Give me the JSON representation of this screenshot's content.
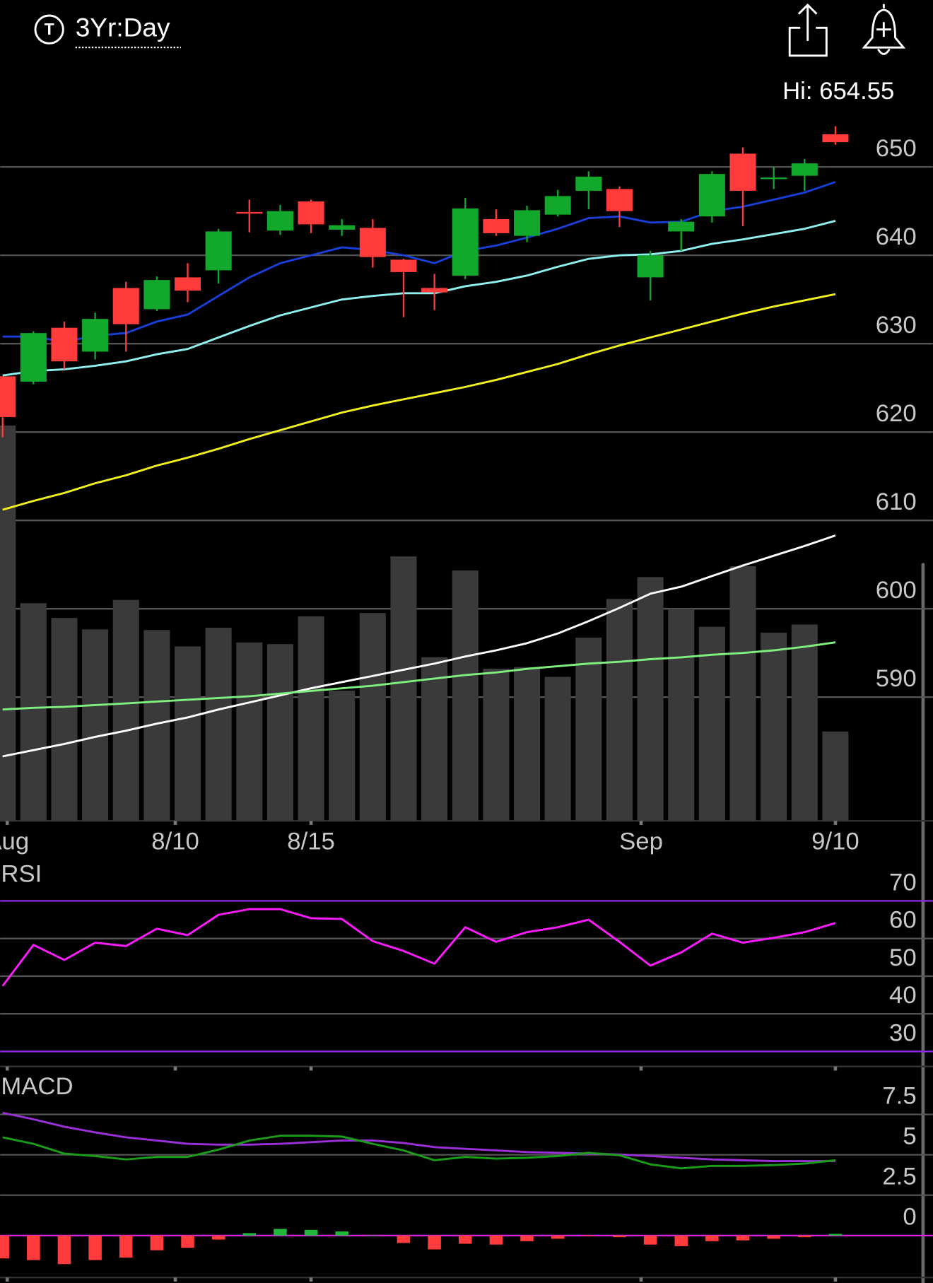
{
  "header": {
    "symbol_icon": "T",
    "timeframe": "3Yr:Day",
    "high_label": "Hi: 654.55"
  },
  "chart_data": [
    {
      "type": "candlestick",
      "categories": [
        null,
        null,
        null,
        null,
        null,
        null,
        null,
        null,
        null,
        null,
        null,
        null,
        null,
        null,
        null,
        null,
        null,
        null,
        null,
        null,
        null,
        null,
        null,
        null,
        null,
        null,
        null,
        null
      ],
      "open": [
        626.3,
        625.7,
        631.8,
        629.1,
        636.3,
        633.9,
        637.5,
        638.3,
        644.9,
        642.8,
        646.1,
        642.9,
        643.1,
        639.5,
        636.3,
        637.7,
        644.1,
        642.2,
        644.6,
        647.3,
        647.5,
        637.5,
        642.7,
        644.4,
        651.5,
        648.7,
        649.0,
        653.7
      ],
      "high": [
        626.3,
        631.4,
        632.5,
        633.5,
        637.0,
        637.6,
        639.1,
        643.0,
        646.3,
        645.7,
        646.3,
        644.1,
        644.1,
        639.6,
        637.9,
        646.5,
        645.2,
        645.6,
        647.4,
        649.5,
        647.8,
        640.5,
        644.1,
        649.5,
        652.2,
        650.0,
        650.9,
        654.6
      ],
      "low": [
        619.4,
        625.4,
        627.1,
        628.2,
        629.1,
        633.7,
        634.7,
        636.8,
        642.6,
        642.3,
        642.5,
        642.2,
        638.6,
        633.0,
        633.8,
        637.3,
        642.2,
        641.5,
        644.4,
        645.2,
        643.2,
        634.9,
        640.5,
        643.7,
        643.3,
        647.5,
        647.3,
        652.5
      ],
      "close": [
        621.7,
        631.2,
        628.0,
        632.8,
        632.2,
        637.2,
        636.0,
        642.7,
        644.8,
        645.0,
        643.5,
        643.4,
        639.8,
        638.1,
        635.8,
        645.3,
        642.5,
        645.1,
        646.7,
        648.9,
        645.0,
        640.0,
        643.8,
        649.2,
        647.3,
        648.8,
        650.4,
        652.8
      ],
      "up_color": "#12a82c",
      "down_color": "#ff3b3b",
      "lines": [
        {
          "color": "#ffffff",
          "values": [
            583.3,
            584.0,
            584.7,
            585.5,
            586.2,
            587.0,
            587.7,
            588.6,
            589.4,
            590.2,
            591.0,
            591.7,
            592.4,
            593.1,
            593.8,
            594.6,
            595.3,
            596.1,
            597.2,
            598.6,
            600.1,
            601.7,
            602.5,
            603.7,
            604.9,
            606.0,
            607.1,
            608.3
          ]
        },
        {
          "color": "#7ef07e",
          "values": [
            588.6,
            588.8,
            588.9,
            589.1,
            589.3,
            589.5,
            589.7,
            589.9,
            590.1,
            590.4,
            590.7,
            591.0,
            591.3,
            591.7,
            592.1,
            592.5,
            592.8,
            593.2,
            593.5,
            593.8,
            594.0,
            594.3,
            594.5,
            594.8,
            595.0,
            595.3,
            595.7,
            596.2
          ]
        },
        {
          "color": "#f2f21a",
          "values": [
            611.2,
            612.2,
            613.1,
            614.2,
            615.1,
            616.2,
            617.1,
            618.1,
            619.2,
            620.2,
            621.2,
            622.2,
            623.0,
            623.7,
            624.4,
            625.1,
            625.9,
            626.8,
            627.7,
            628.8,
            629.8,
            630.7,
            631.6,
            632.5,
            633.4,
            634.2,
            634.9,
            635.6
          ]
        },
        {
          "color": "#8ff0f0",
          "values": [
            626.4,
            626.9,
            627.1,
            627.5,
            628.0,
            628.8,
            629.4,
            630.7,
            632.0,
            633.2,
            634.1,
            635.0,
            635.4,
            635.7,
            635.7,
            636.5,
            637.0,
            637.7,
            638.7,
            639.6,
            640.0,
            640.1,
            640.5,
            641.3,
            641.8,
            642.4,
            643.0,
            643.9
          ]
        },
        {
          "color": "#1a3ed8",
          "values": [
            630.8,
            630.8,
            630.2,
            630.9,
            631.2,
            632.5,
            633.3,
            635.4,
            637.5,
            639.1,
            640.0,
            640.9,
            640.6,
            640.0,
            639.1,
            640.5,
            641.1,
            642.0,
            643.0,
            644.2,
            644.4,
            643.7,
            643.8,
            645.0,
            645.5,
            646.3,
            647.1,
            648.3
          ]
        }
      ],
      "volume": {
        "color": "#3a3a3a",
        "vlim": [
          0,
          216
        ],
        "values": [
          120.8,
          66.5,
          62,
          58.5,
          67.5,
          58.3,
          53.3,
          59,
          54.5,
          54,
          62.5,
          39.8,
          63.5,
          80.8,
          50,
          76.5,
          46.5,
          47,
          44,
          56,
          67.8,
          74.5,
          64.8,
          59.3,
          77.8,
          57.5,
          60,
          27.3
        ]
      },
      "ylim": [
        576,
        656
      ],
      "yticks": [
        590,
        600,
        610,
        620,
        630,
        640,
        650
      ],
      "grid_colors": [
        "#555555",
        "#555555",
        "#555555",
        "#555555",
        "#555555",
        "#555555",
        "#555555"
      ],
      "xticks": [
        {
          "value": 0.15,
          "label": "Aug"
        },
        {
          "value": 5.6,
          "label": "8/10"
        },
        {
          "value": 10,
          "label": "8/15"
        },
        {
          "value": 20.7,
          "label": "Sep"
        },
        {
          "value": 27,
          "label": "9/10"
        }
      ]
    },
    {
      "type": "line",
      "title": "RSI",
      "lines": [
        {
          "color": "#ff1aff",
          "values": [
            47.4,
            58.3,
            54.3,
            58.9,
            58.0,
            62.6,
            60.9,
            66.3,
            67.8,
            67.8,
            65.4,
            65.2,
            59.3,
            56.7,
            53.3,
            63.0,
            59.1,
            61.7,
            63.0,
            65.0,
            59.1,
            52.8,
            56.3,
            61.3,
            58.9,
            60.2,
            61.7,
            64.1
          ]
        }
      ],
      "ylim": [
        26,
        80
      ],
      "yticks": [
        70,
        60,
        50,
        40,
        30
      ],
      "grid_colors": [
        "#8a2be2",
        "#555555",
        "#555555",
        "#555555",
        "#8a2be2"
      ]
    },
    {
      "type": "line",
      "title": "MACD",
      "lines": [
        {
          "color": "#9b30d9",
          "values": [
            7.6,
            7.2,
            6.74,
            6.39,
            6.08,
            5.88,
            5.68,
            5.63,
            5.63,
            5.68,
            5.78,
            5.88,
            5.88,
            5.73,
            5.47,
            5.37,
            5.27,
            5.17,
            5.12,
            5.07,
            5.02,
            4.92,
            4.82,
            4.71,
            4.66,
            4.61,
            4.61,
            4.61
          ]
        },
        {
          "color": "#1a9e1a",
          "values": [
            6.08,
            5.68,
            5.07,
            4.92,
            4.71,
            4.87,
            4.87,
            5.32,
            5.88,
            6.18,
            6.18,
            6.13,
            5.68,
            5.27,
            4.66,
            4.87,
            4.76,
            4.82,
            4.92,
            5.12,
            4.97,
            4.41,
            4.16,
            4.31,
            4.31,
            4.36,
            4.46,
            4.66
          ]
        }
      ],
      "bars": {
        "up_color": "#1fb83a",
        "down_color": "#ff3b3b",
        "values": [
          -1.42,
          -1.52,
          -1.77,
          -1.52,
          -1.37,
          -0.91,
          -0.76,
          -0.25,
          0.15,
          0.41,
          0.35,
          0.25,
          0,
          -0.46,
          -0.86,
          -0.51,
          -0.56,
          -0.35,
          -0.2,
          -0.05,
          -0.1,
          -0.56,
          -0.66,
          -0.35,
          -0.3,
          -0.2,
          -0.1,
          0.1
        ]
      },
      "ylim": [
        -2.6,
        9.9
      ],
      "yticks": [
        7.5,
        5,
        2.5,
        0
      ],
      "grid_colors": [
        "#555555",
        "#555555",
        "#555555",
        "#e020e0"
      ]
    }
  ]
}
